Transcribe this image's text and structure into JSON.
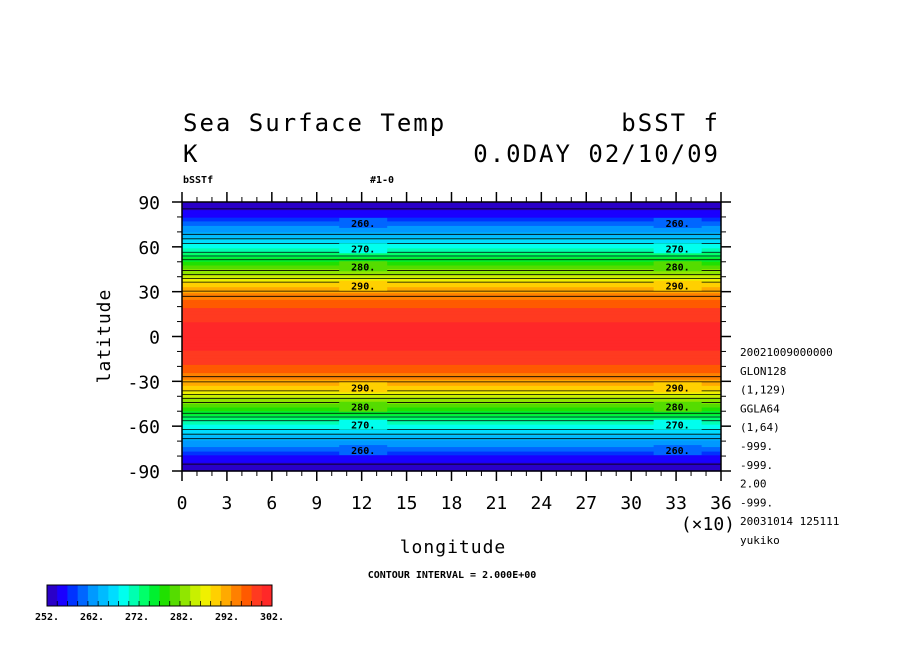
{
  "header": {
    "title": "Sea Surface Temp",
    "var_code": "bSST f",
    "units": "K",
    "time_label": "0.0DAY 02/10/09",
    "var_small": "bSSTf",
    "run_tag": "#1-0"
  },
  "axes": {
    "xlabel": "longitude",
    "ylabel": "latitude",
    "x_scale_note": "(×10)",
    "xticks": [
      "0",
      "3",
      "6",
      "9",
      "12",
      "15",
      "18",
      "21",
      "24",
      "27",
      "30",
      "33",
      "36"
    ],
    "yticks": [
      "90",
      "60",
      "30",
      "0",
      "-30",
      "-60",
      "-90"
    ]
  },
  "contour_note": "CONTOUR INTERVAL = 2.000E+00",
  "info_lines": [
    "20021009000000",
    "GLON128",
    "(1,129)",
    "GGLA64",
    "(1,64)",
    "-999.",
    "-999.",
    "2.00",
    "-999.",
    "20031014 125111",
    "yukiko"
  ],
  "colorbar": {
    "labels": [
      "252.",
      "262.",
      "272.",
      "282.",
      "292.",
      "302."
    ],
    "colors": [
      "#2a00c8",
      "#1a00ff",
      "#0033ff",
      "#0066ff",
      "#0099ff",
      "#00bbff",
      "#00dcff",
      "#00ffee",
      "#00ffb0",
      "#00ff6a",
      "#00f030",
      "#20e000",
      "#55dc00",
      "#90e600",
      "#c8f000",
      "#f0f000",
      "#ffd000",
      "#ffaa00",
      "#ff8000",
      "#ff5a00",
      "#ff3a20",
      "#ff2828"
    ]
  },
  "chart_data": {
    "type": "heatmap",
    "title": "Sea Surface Temp",
    "xlabel": "longitude",
    "ylabel": "latitude",
    "xlim": [
      0,
      360
    ],
    "ylim": [
      -90,
      90
    ],
    "x_tick_values": [
      0,
      30,
      60,
      90,
      120,
      150,
      180,
      210,
      240,
      270,
      300,
      330,
      360
    ],
    "y_tick_values": [
      90,
      60,
      30,
      0,
      -30,
      -60,
      -90
    ],
    "contour_interval": 2.0,
    "units": "K",
    "contour_labels": [
      {
        "text": "260.",
        "lat": 76
      },
      {
        "text": "270.",
        "lat": 59
      },
      {
        "text": "280.",
        "lat": 47
      },
      {
        "text": "290.",
        "lat": 34
      },
      {
        "text": "290.",
        "lat": -34
      },
      {
        "text": "280.",
        "lat": -47
      },
      {
        "text": "270.",
        "lat": -59
      },
      {
        "text": "260.",
        "lat": -76
      }
    ],
    "contour_label_lons": [
      105,
      315
    ],
    "field_profile": {
      "description_free": true,
      "lat": [
        -88,
        -80,
        -76,
        -70,
        -59,
        -50,
        -47,
        -40,
        -34,
        -25,
        -15,
        0,
        15,
        25,
        34,
        40,
        47,
        50,
        59,
        70,
        76,
        80,
        88
      ],
      "value": [
        253,
        256,
        260,
        263,
        270,
        277,
        280,
        285,
        290,
        295,
        299,
        301,
        299,
        295,
        290,
        285,
        280,
        277,
        270,
        263,
        260,
        256,
        253
      ]
    },
    "colorbar_range": [
      252,
      302
    ]
  }
}
